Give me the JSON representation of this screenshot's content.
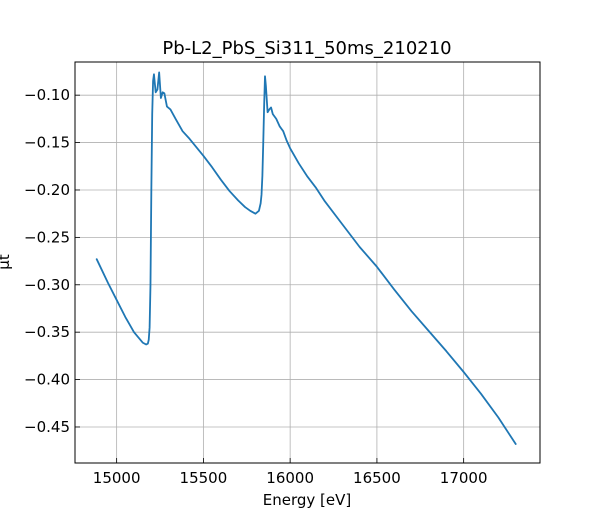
{
  "chart_data": {
    "type": "line",
    "title": "Pb-L2_PbS_Si311_50ms_210210",
    "xlabel": "Energy [eV]",
    "ylabel": "μt",
    "xlim": [
      14760,
      17440
    ],
    "ylim": [
      -0.488,
      -0.065
    ],
    "xticks": [
      15000,
      15500,
      16000,
      16500,
      17000
    ],
    "xtick_labels": [
      "15000",
      "15500",
      "16000",
      "16500",
      "17000"
    ],
    "yticks": [
      -0.1,
      -0.15,
      -0.2,
      -0.25,
      -0.3,
      -0.35,
      -0.4,
      -0.45
    ],
    "ytick_labels": [
      "−0.10",
      "−0.15",
      "−0.20",
      "−0.25",
      "−0.30",
      "−0.35",
      "−0.40",
      "−0.45"
    ],
    "grid": true,
    "series": [
      {
        "color": "#1f77b4",
        "x": [
          14885,
          14950,
          15000,
          15050,
          15100,
          15150,
          15170,
          15180,
          15185,
          15190,
          15195,
          15200,
          15205,
          15210,
          15215,
          15225,
          15235,
          15245,
          15255,
          15265,
          15275,
          15290,
          15310,
          15340,
          15380,
          15420,
          15460,
          15500,
          15550,
          15600,
          15650,
          15700,
          15740,
          15770,
          15800,
          15820,
          15830,
          15835,
          15840,
          15845,
          15850,
          15855,
          15860,
          15870,
          15880,
          15890,
          15900,
          15920,
          15940,
          15960,
          15980,
          16000,
          16050,
          16100,
          16150,
          16200,
          16300,
          16400,
          16500,
          16600,
          16700,
          16800,
          16900,
          17000,
          17100,
          17200,
          17300
        ],
        "y": [
          -0.273,
          -0.298,
          -0.316,
          -0.334,
          -0.35,
          -0.361,
          -0.363,
          -0.362,
          -0.358,
          -0.345,
          -0.3,
          -0.2,
          -0.12,
          -0.085,
          -0.078,
          -0.097,
          -0.094,
          -0.076,
          -0.103,
          -0.097,
          -0.098,
          -0.112,
          -0.115,
          -0.125,
          -0.138,
          -0.146,
          -0.155,
          -0.164,
          -0.176,
          -0.189,
          -0.201,
          -0.211,
          -0.218,
          -0.222,
          -0.225,
          -0.222,
          -0.214,
          -0.205,
          -0.185,
          -0.15,
          -0.112,
          -0.08,
          -0.09,
          -0.118,
          -0.115,
          -0.113,
          -0.12,
          -0.125,
          -0.133,
          -0.138,
          -0.148,
          -0.156,
          -0.172,
          -0.186,
          -0.198,
          -0.212,
          -0.236,
          -0.26,
          -0.281,
          -0.305,
          -0.328,
          -0.349,
          -0.37,
          -0.392,
          -0.415,
          -0.44,
          -0.468
        ]
      }
    ]
  }
}
